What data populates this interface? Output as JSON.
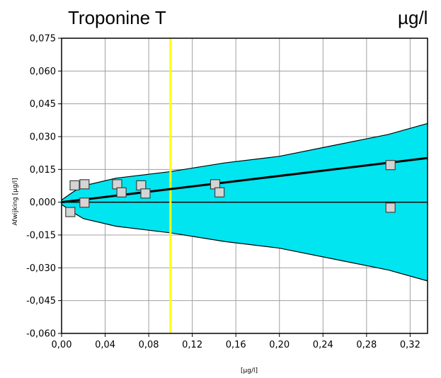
{
  "chart_data": {
    "type": "scatter",
    "title": "Troponine T",
    "unit_label": "µg/l",
    "xlabel": "[µg/l]",
    "ylabel": "Afwijking  [µg/l]",
    "xlim": [
      0,
      0.336
    ],
    "ylim": [
      -0.06,
      0.075
    ],
    "x_ticks": [
      "0,00",
      "0,04",
      "0,08",
      "0,12",
      "0,16",
      "0,20",
      "0,24",
      "0,28",
      "0,32"
    ],
    "x_tick_values": [
      0,
      0.04,
      0.08,
      0.12,
      0.16,
      0.2,
      0.24,
      0.28,
      0.32
    ],
    "y_ticks": [
      "0,075",
      "0,060",
      "0,045",
      "0,030",
      "0,015",
      "0,000",
      "-0,015",
      "-0,030",
      "-0,045",
      "-0,060"
    ],
    "y_tick_values": [
      0.075,
      0.06,
      0.045,
      0.03,
      0.015,
      0.0,
      -0.015,
      -0.03,
      -0.045,
      -0.06
    ],
    "grid": true,
    "reference_line_x": 0.1,
    "regression_line": {
      "x": [
        0,
        0.336
      ],
      "y": [
        0,
        0.0202
      ]
    },
    "band_upper": {
      "x": [
        0,
        0.01,
        0.02,
        0.05,
        0.1,
        0.15,
        0.2,
        0.25,
        0.3,
        0.336
      ],
      "y": [
        0.001,
        0.0045,
        0.0075,
        0.011,
        0.014,
        0.018,
        0.021,
        0.026,
        0.031,
        0.036
      ]
    },
    "band_lower": {
      "x": [
        0,
        0.01,
        0.02,
        0.05,
        0.1,
        0.15,
        0.2,
        0.25,
        0.3,
        0.336
      ],
      "y": [
        -0.001,
        -0.0045,
        -0.0075,
        -0.011,
        -0.014,
        -0.018,
        -0.021,
        -0.026,
        -0.031,
        -0.036
      ]
    },
    "points": [
      {
        "x": 0.008,
        "y": -0.0045
      },
      {
        "x": 0.012,
        "y": 0.0077
      },
      {
        "x": 0.021,
        "y": 0.0082
      },
      {
        "x": 0.021,
        "y": -0.0002
      },
      {
        "x": 0.051,
        "y": 0.0082
      },
      {
        "x": 0.055,
        "y": 0.0045
      },
      {
        "x": 0.073,
        "y": 0.0077
      },
      {
        "x": 0.077,
        "y": 0.004
      },
      {
        "x": 0.141,
        "y": 0.0082
      },
      {
        "x": 0.145,
        "y": 0.0045
      },
      {
        "x": 0.302,
        "y": 0.017
      },
      {
        "x": 0.302,
        "y": -0.0025
      }
    ],
    "colors": {
      "band": "#00e5f0",
      "band_edge": "#000000",
      "reference": "#ffff00",
      "grid": "#a0a0a0",
      "point_fill": "#d4d4d4",
      "point_stroke": "#404040"
    }
  }
}
